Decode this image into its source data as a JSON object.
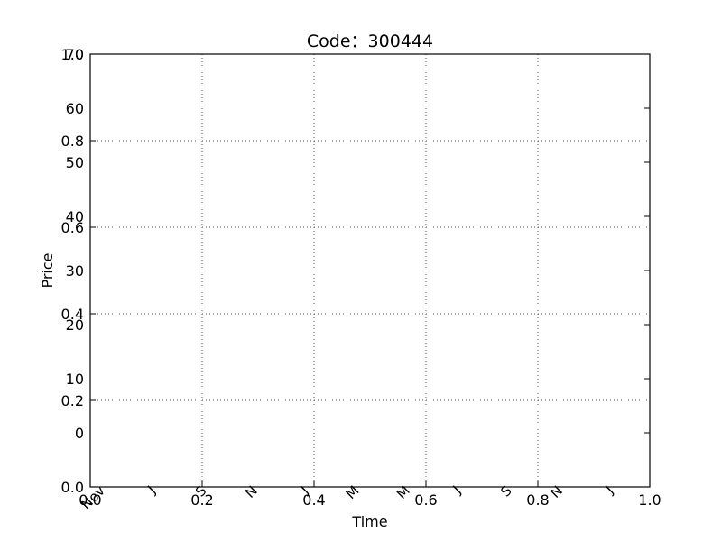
{
  "chart_data": {
    "type": "line",
    "title": "Code：300444",
    "xlabel": "Time",
    "ylabel": "Price",
    "grid": true,
    "background": "#ffffff",
    "axis_color": "#000000",
    "grid_color": "#555555",
    "x_ticks": [
      "0.0",
      "0.2",
      "0.4",
      "0.6",
      "0.8",
      "1.0"
    ],
    "x_range": [
      0,
      1
    ],
    "y_ticks": [
      "0.0",
      "0.2",
      "0.4",
      "0.6",
      "0.8",
      "1.0"
    ],
    "y_range": [
      0,
      1
    ],
    "price_ticks": [
      "0",
      "10",
      "20",
      "30",
      "40",
      "50",
      "60",
      "70"
    ],
    "price_range": [
      -10,
      70
    ],
    "date_ticks": [
      "Nov",
      "J",
      "S",
      "N",
      "J",
      "M",
      "M",
      "J",
      "S",
      "N",
      "J"
    ],
    "series": []
  }
}
